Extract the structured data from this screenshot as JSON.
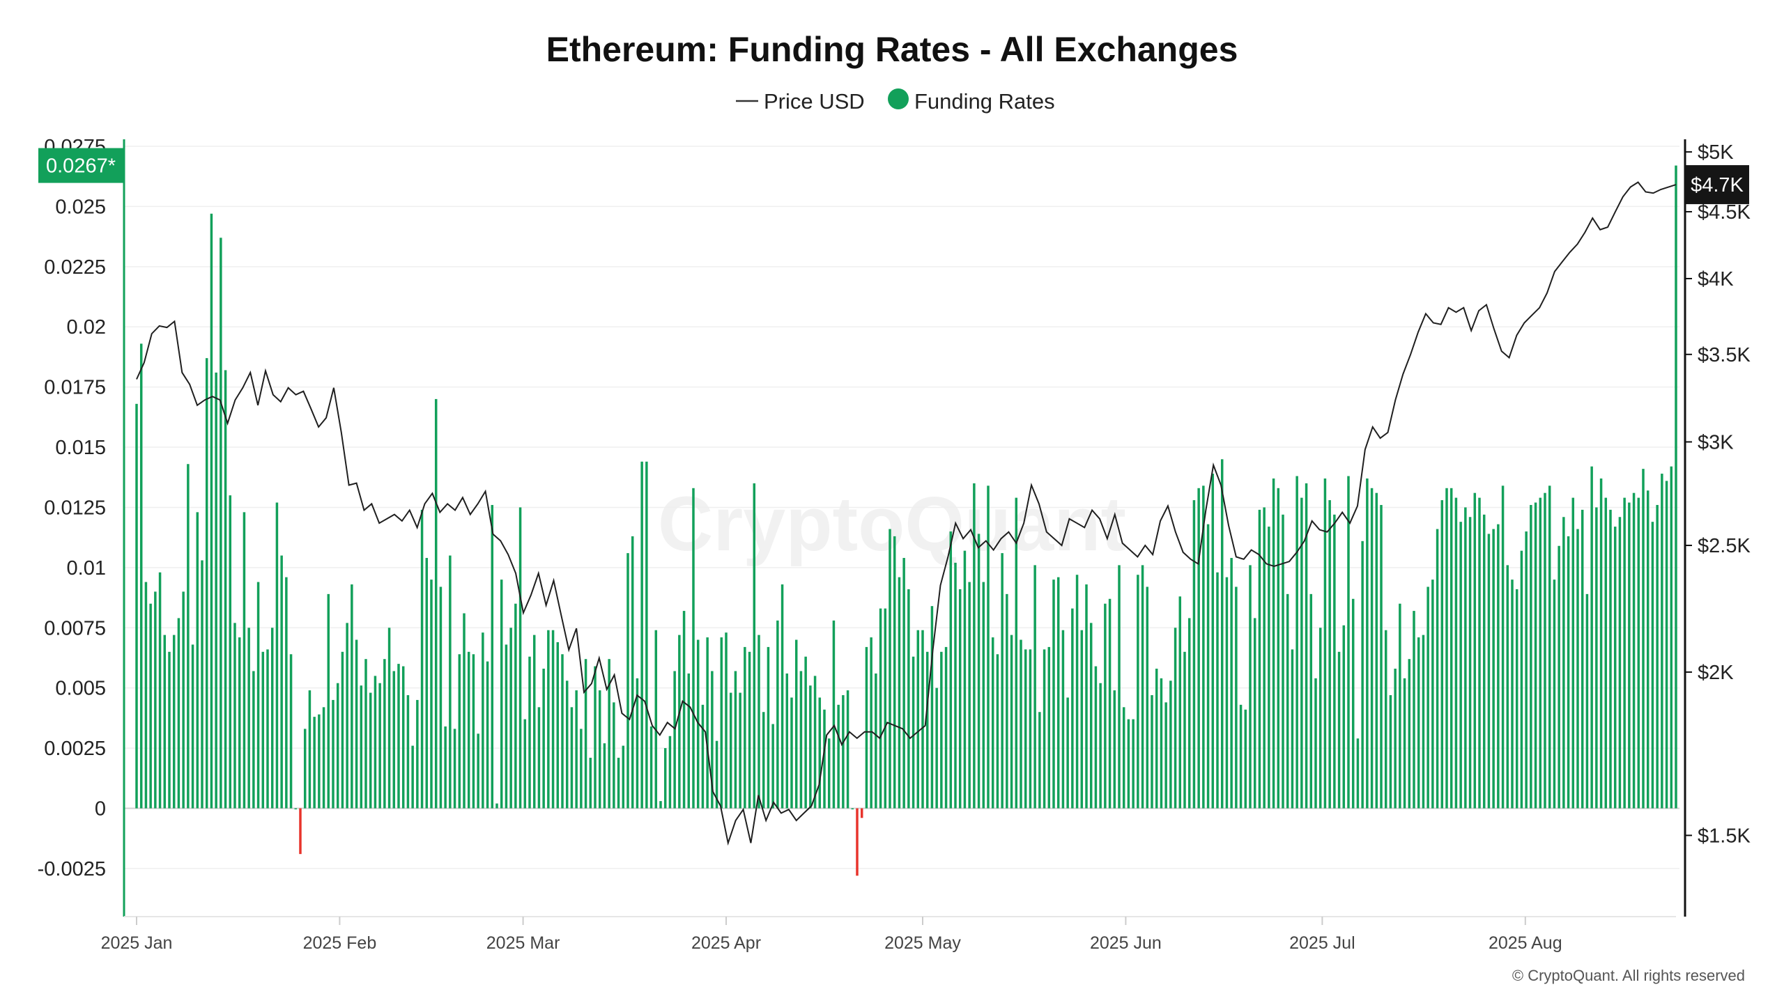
{
  "chart_data": {
    "type": "bar+line",
    "title": "Ethereum: Funding Rates - All Exchanges",
    "legend": [
      {
        "name": "Price USD",
        "symbol": "line",
        "color": "#333333"
      },
      {
        "name": "Funding Rates",
        "symbol": "dot",
        "color": "#12a05a"
      }
    ],
    "legend_placement": "top-center",
    "watermark": "CryptoQuant",
    "copyright": "© CryptoQuant. All rights reserved",
    "left_axis": {
      "name": "Funding Rates",
      "range": [
        -0.0045,
        0.0275
      ],
      "ticks": [
        -0.0025,
        0,
        0.0025,
        0.005,
        0.0075,
        0.01,
        0.0125,
        0.015,
        0.0175,
        0.02,
        0.0225,
        0.025,
        0.0275
      ],
      "tick_labels": [
        "-0.0025",
        "0",
        "0.0025",
        "0.005",
        "0.0075",
        "0.01",
        "0.0125",
        "0.015",
        "0.0175",
        "0.02",
        "0.0225",
        "0.025",
        "0.0275"
      ],
      "last_value_label": "0.0267*"
    },
    "right_axis": {
      "name": "Price USD",
      "scale": "log",
      "range": [
        1300,
        5050
      ],
      "ticks": [
        1500,
        2000,
        2500,
        3000,
        3500,
        4000,
        4500,
        5000
      ],
      "tick_labels": [
        "$1.5K",
        "$2K",
        "$2.5K",
        "$3K",
        "$3.5K",
        "$4K",
        "$4.5K",
        "$5K"
      ],
      "last_value_label": "$4.7K"
    },
    "x_axis": {
      "days": 236,
      "ticks": [
        {
          "day": 0,
          "label": "2025 Jan"
        },
        {
          "day": 31,
          "label": "2025 Feb"
        },
        {
          "day": 59,
          "label": "2025 Mar"
        },
        {
          "day": 90,
          "label": "2025 Apr"
        },
        {
          "day": 120,
          "label": "2025 May"
        },
        {
          "day": 151,
          "label": "2025 Jun"
        },
        {
          "day": 181,
          "label": "2025 Jul"
        },
        {
          "day": 212,
          "label": "2025 Aug"
        }
      ]
    },
    "colors": {
      "positive": "#12a05a",
      "negative": "#e8332b",
      "price": "#222222",
      "accent": "#12a05a"
    },
    "funding_rates": [
      0.0168,
      0.0193,
      0.0094,
      0.0085,
      0.009,
      0.0098,
      0.0072,
      0.0065,
      0.0072,
      0.0079,
      0.009,
      0.0143,
      0.0068,
      0.0123,
      0.0103,
      0.0187,
      0.0247,
      0.0181,
      0.0237,
      0.0182,
      0.013,
      0.0077,
      0.0071,
      0.0123,
      0.0075,
      0.0057,
      0.0094,
      0.0065,
      0.0066,
      0.0075,
      0.0127,
      0.0105,
      0.0096,
      0.0064,
      0.0,
      -0.0019,
      0.0033,
      0.0049,
      0.0038,
      0.0039,
      0.0042,
      0.0089,
      0.0045,
      0.0052,
      0.0065,
      0.0077,
      0.0093,
      0.007,
      0.0051,
      0.0062,
      0.0048,
      0.0055,
      0.0052,
      0.0062,
      0.0075,
      0.0057,
      0.006,
      0.0059,
      0.0047,
      0.0026,
      0.0045,
      0.0124,
      0.0104,
      0.0095,
      0.017,
      0.0092,
      0.0034,
      0.0105,
      0.0033,
      0.0064,
      0.0081,
      0.0065,
      0.0064,
      0.0031,
      0.0073,
      0.0061,
      0.0126,
      0.0002,
      0.0095,
      0.0068,
      0.0075,
      0.0085,
      0.0125,
      0.0037,
      0.0063,
      0.0072,
      0.0042,
      0.0058,
      0.0074,
      0.0074,
      0.0069,
      0.0064,
      0.0053,
      0.0042,
      0.0049,
      0.0033,
      0.0062,
      0.0021,
      0.0059,
      0.0049,
      0.0027,
      0.0062,
      0.0044,
      0.0021,
      0.0026,
      0.0106,
      0.0113,
      0.0054,
      0.0144,
      0.0144,
      0.0034,
      0.0074,
      0.0003,
      0.0025,
      0.003,
      0.0057,
      0.0072,
      0.0082,
      0.0056,
      0.0133,
      0.007,
      0.0043,
      0.0071,
      0.0057,
      0.0028,
      0.0071,
      0.0073,
      0.0048,
      0.0057,
      0.0048,
      0.0067,
      0.0065,
      0.0135,
      0.0072,
      0.004,
      0.0067,
      0.0035,
      0.0078,
      0.0093,
      0.0056,
      0.0046,
      0.007,
      0.0057,
      0.0063,
      0.0051,
      0.0055,
      0.0046,
      0.0041,
      0.0029,
      0.0078,
      0.0043,
      0.0047,
      0.0049,
      0.0,
      -0.0028,
      -0.0004,
      0.0067,
      0.0071,
      0.0056,
      0.0083,
      0.0083,
      0.0116,
      0.0113,
      0.0096,
      0.0104,
      0.0091,
      0.0063,
      0.0074,
      0.0074,
      0.0065,
      0.0084,
      0.005,
      0.0065,
      0.0067,
      0.0115,
      0.0102,
      0.0091,
      0.0107,
      0.0094,
      0.0135,
      0.0114,
      0.0094,
      0.0134,
      0.0071,
      0.0064,
      0.0106,
      0.0089,
      0.0072,
      0.0129,
      0.007,
      0.0066,
      0.0066,
      0.0101,
      0.004,
      0.0066,
      0.0067,
      0.0095,
      0.0096,
      0.0074,
      0.0046,
      0.0083,
      0.0097,
      0.0074,
      0.0093,
      0.0077,
      0.0059,
      0.0052,
      0.0085,
      0.0087,
      0.0049,
      0.0101,
      0.0042,
      0.0037,
      0.0037,
      0.0097,
      0.0101,
      0.0092,
      0.0047,
      0.0058,
      0.0054,
      0.0044,
      0.0053,
      0.0075,
      0.0088,
      0.0065,
      0.0079,
      0.0128,
      0.0133,
      0.0134,
      0.0118,
      0.0139,
      0.0098,
      0.0145,
      0.0096,
      0.0104,
      0.0092,
      0.0043,
      0.0041,
      0.0101,
      0.0079,
      0.0124,
      0.0125,
      0.0117,
      0.0137,
      0.0133,
      0.0122,
      0.0089,
      0.0066,
      0.0138,
      0.0129,
      0.0135,
      0.0089,
      0.0054,
      0.0075,
      0.0137,
      0.0128,
      0.0122,
      0.0065,
      0.0076,
      0.0138,
      0.0087,
      0.0029,
      0.0111,
      0.0137,
      0.0133,
      0.0131,
      0.0126,
      0.0074,
      0.0047,
      0.0058,
      0.0085,
      0.0054,
      0.0062,
      0.0082,
      0.0071,
      0.0072,
      0.0092,
      0.0095,
      0.0116,
      0.0128,
      0.0133,
      0.0133,
      0.0129,
      0.0119,
      0.0125,
      0.0121,
      0.0131,
      0.0129,
      0.0122,
      0.0114,
      0.0116,
      0.0118,
      0.0134,
      0.0101,
      0.0095,
      0.0091,
      0.0107,
      0.0115,
      0.0126,
      0.0127,
      0.0129,
      0.0131,
      0.0134,
      0.0095,
      0.0109,
      0.0121,
      0.0113,
      0.0129,
      0.0116,
      0.0124,
      0.0089,
      0.0142,
      0.0125,
      0.0137,
      0.0129,
      0.0124,
      0.0117,
      0.0121,
      0.0129,
      0.0127,
      0.0131,
      0.0129,
      0.0141,
      0.0132,
      0.0119,
      0.0126,
      0.0139,
      0.0136,
      0.0142,
      0.0267
    ],
    "price_usd": [
      3350,
      3450,
      3630,
      3680,
      3670,
      3710,
      3390,
      3320,
      3200,
      3230,
      3250,
      3230,
      3100,
      3230,
      3300,
      3390,
      3200,
      3400,
      3260,
      3220,
      3300,
      3260,
      3280,
      3180,
      3080,
      3130,
      3300,
      3050,
      2780,
      2790,
      2660,
      2690,
      2600,
      2620,
      2640,
      2610,
      2660,
      2580,
      2690,
      2740,
      2650,
      2690,
      2660,
      2720,
      2640,
      2690,
      2750,
      2550,
      2520,
      2460,
      2380,
      2220,
      2290,
      2380,
      2250,
      2350,
      2210,
      2080,
      2160,
      1930,
      1960,
      2050,
      1940,
      1990,
      1860,
      1840,
      1920,
      1900,
      1820,
      1790,
      1830,
      1810,
      1900,
      1880,
      1830,
      1800,
      1620,
      1580,
      1480,
      1540,
      1570,
      1480,
      1610,
      1540,
      1590,
      1560,
      1570,
      1540,
      1560,
      1580,
      1640,
      1790,
      1820,
      1760,
      1800,
      1780,
      1800,
      1800,
      1780,
      1830,
      1820,
      1810,
      1780,
      1800,
      1820,
      2080,
      2330,
      2450,
      2600,
      2530,
      2570,
      2490,
      2520,
      2480,
      2530,
      2560,
      2510,
      2600,
      2780,
      2690,
      2560,
      2530,
      2500,
      2620,
      2600,
      2580,
      2660,
      2620,
      2530,
      2640,
      2510,
      2480,
      2450,
      2500,
      2460,
      2610,
      2680,
      2560,
      2470,
      2440,
      2420,
      2660,
      2880,
      2780,
      2590,
      2450,
      2440,
      2480,
      2460,
      2420,
      2410,
      2420,
      2430,
      2470,
      2520,
      2610,
      2570,
      2560,
      2600,
      2650,
      2600,
      2680,
      2960,
      3080,
      3020,
      3050,
      3230,
      3380,
      3500,
      3640,
      3760,
      3700,
      3690,
      3800,
      3770,
      3800,
      3650,
      3780,
      3820,
      3660,
      3520,
      3480,
      3620,
      3700,
      3750,
      3800,
      3900,
      4050,
      4120,
      4190,
      4250,
      4340,
      4450,
      4360,
      4380,
      4500,
      4620,
      4700,
      4740,
      4660,
      4650,
      4680,
      4700,
      4720
    ]
  }
}
